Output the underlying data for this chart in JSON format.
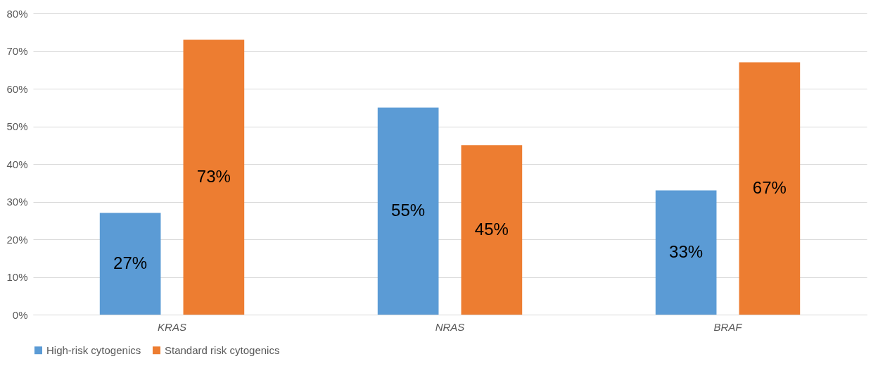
{
  "chart_data": {
    "type": "bar",
    "categories": [
      "KRAS",
      "NRAS",
      "BRAF"
    ],
    "series": [
      {
        "name": "High-risk cytogenics",
        "color": "#5b9bd5",
        "values": [
          27,
          55,
          33
        ],
        "value_labels": [
          "27%",
          "55%",
          "33%"
        ]
      },
      {
        "name": "Standard risk cytogenics",
        "color": "#ed7d31",
        "values": [
          73,
          45,
          67
        ],
        "value_labels": [
          "73%",
          "45%",
          "67%"
        ]
      }
    ],
    "ylim": [
      0,
      80
    ],
    "yticks": [
      {
        "value": 0,
        "label": "0%"
      },
      {
        "value": 10,
        "label": "10%"
      },
      {
        "value": 20,
        "label": "20%"
      },
      {
        "value": 30,
        "label": "30%"
      },
      {
        "value": 40,
        "label": "40%"
      },
      {
        "value": 50,
        "label": "50%"
      },
      {
        "value": 60,
        "label": "60%"
      },
      {
        "value": 70,
        "label": "70%"
      },
      {
        "value": 80,
        "label": "80%"
      }
    ],
    "grid": "y",
    "legend": "bottom"
  }
}
